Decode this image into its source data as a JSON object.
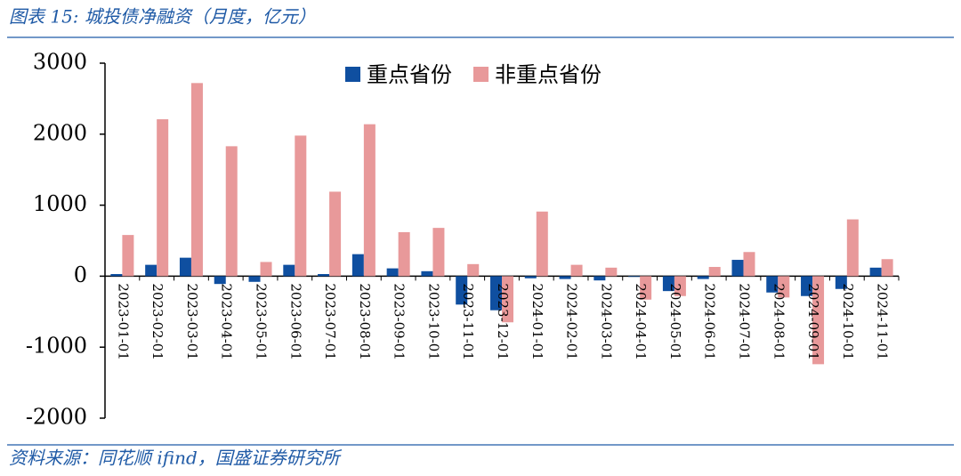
{
  "chart_data": {
    "type": "bar",
    "title": "图表 15:  城投债净融资（月度，亿元）",
    "source": "资料来源：同花顺 ifind，国盛证券研究所",
    "categories": [
      "2023-01-01",
      "2023-02-01",
      "2023-03-01",
      "2023-04-01",
      "2023-05-01",
      "2023-06-01",
      "2023-07-01",
      "2023-08-01",
      "2023-09-01",
      "2023-10-01",
      "2023-11-01",
      "2023-12-01",
      "2024-01-01",
      "2024-02-01",
      "2024-03-01",
      "2024-04-01",
      "2024-05-01",
      "2024-06-01",
      "2024-07-01",
      "2024-08-01",
      "2024-09-01",
      "2024-10-01",
      "2024-11-01"
    ],
    "series": [
      {
        "name": "重点省份",
        "color": "#0f4fa0",
        "values": [
          30,
          160,
          260,
          -110,
          -80,
          160,
          30,
          310,
          110,
          70,
          -400,
          -480,
          -30,
          -40,
          -60,
          -10,
          -210,
          -40,
          230,
          -230,
          -280,
          -180,
          120
        ]
      },
      {
        "name": "非重点省份",
        "color": "#e8999a",
        "values": [
          580,
          2210,
          2720,
          1830,
          200,
          1980,
          1190,
          2140,
          620,
          680,
          170,
          -650,
          910,
          160,
          120,
          -330,
          -280,
          130,
          340,
          -300,
          -1240,
          800,
          240
        ]
      }
    ],
    "ylim": [
      -2000,
      3000
    ],
    "yticks": [
      -2000,
      -1000,
      0,
      1000,
      2000,
      3000
    ],
    "grid": false,
    "legend": "top"
  }
}
